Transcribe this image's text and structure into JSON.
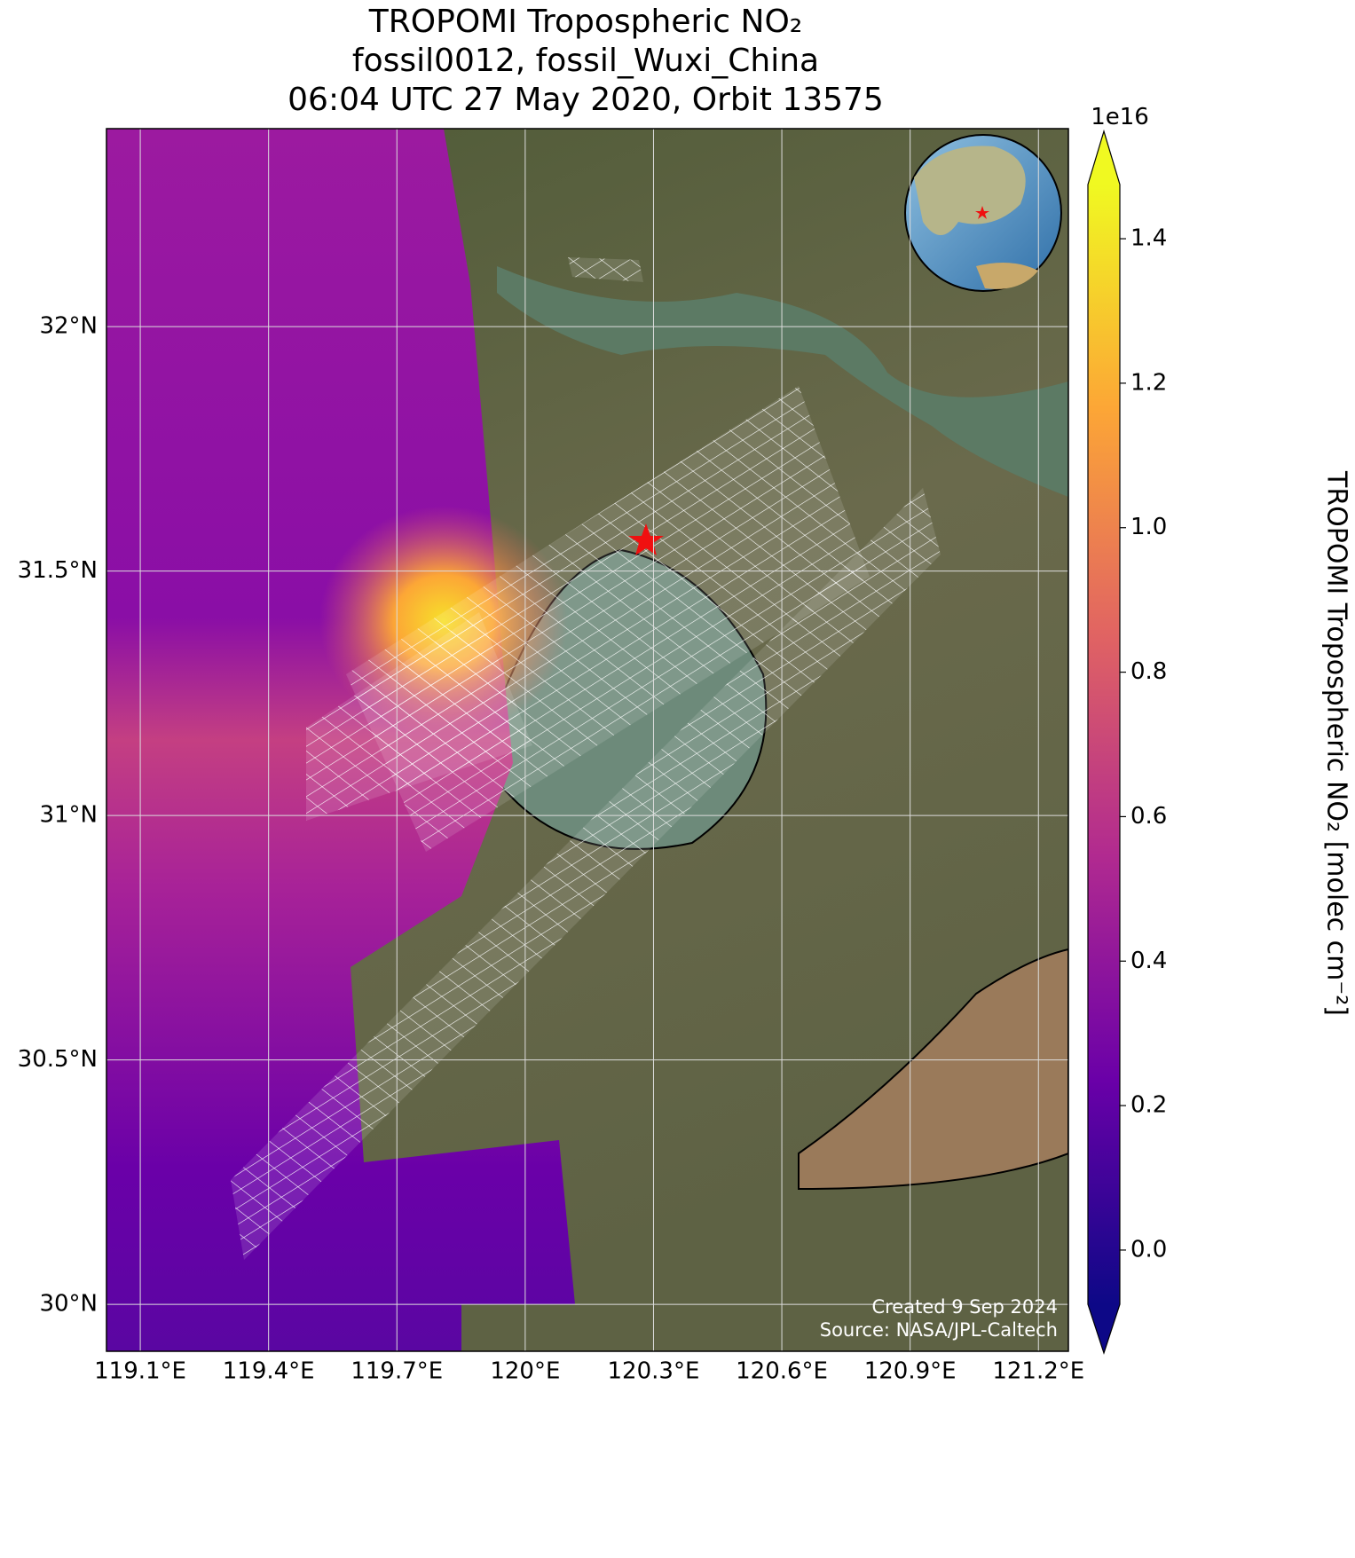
{
  "title": [
    "TROPOMI Tropospheric NO₂",
    "fossil0012, fossil_Wuxi_China",
    "06:04 UTC 27 May 2020, Orbit 13575"
  ],
  "map": {
    "lonlim": [
      119.021,
      121.27
    ],
    "latlim": [
      29.904,
      32.405
    ],
    "lonticks": [
      {
        "value": 119.1,
        "label": "119.1°E"
      },
      {
        "value": 119.4,
        "label": "119.4°E"
      },
      {
        "value": 119.7,
        "label": "119.7°E"
      },
      {
        "value": 120,
        "label": "120°E"
      },
      {
        "value": 120.3,
        "label": "120.3°E"
      },
      {
        "value": 120.6,
        "label": "120.6°E"
      },
      {
        "value": 120.9,
        "label": "120.9°E"
      },
      {
        "value": 121.2,
        "label": "121.2°E"
      }
    ],
    "latticks": [
      {
        "value": 30,
        "label": "30°N"
      },
      {
        "value": 30.5,
        "label": "30.5°N"
      },
      {
        "value": 31,
        "label": "31°N"
      },
      {
        "value": 31.5,
        "label": "31.5°N"
      },
      {
        "value": 32,
        "label": "32°N"
      }
    ],
    "grid": true
  },
  "colorbar": {
    "lim": [
      -0.075,
      1.475
    ],
    "ticks": [
      {
        "value": 0,
        "label": "0.0"
      },
      0.2,
      0.4,
      0.6,
      0.8,
      {
        "value": 1,
        "label": "1.0"
      },
      1.2,
      1.4
    ],
    "offset_label": "1e16",
    "label": "TROPOMI Tropospheric NO₂ [molec cm⁻²]",
    "colors": [
      "#0d0887",
      "#6a00a8",
      "#b12a90",
      "#e16462",
      "#fca636",
      "#f0f921"
    ]
  },
  "credits": [
    "Created 9 Sep 2024",
    "Source: NASA/JPL-Caltech"
  ]
}
